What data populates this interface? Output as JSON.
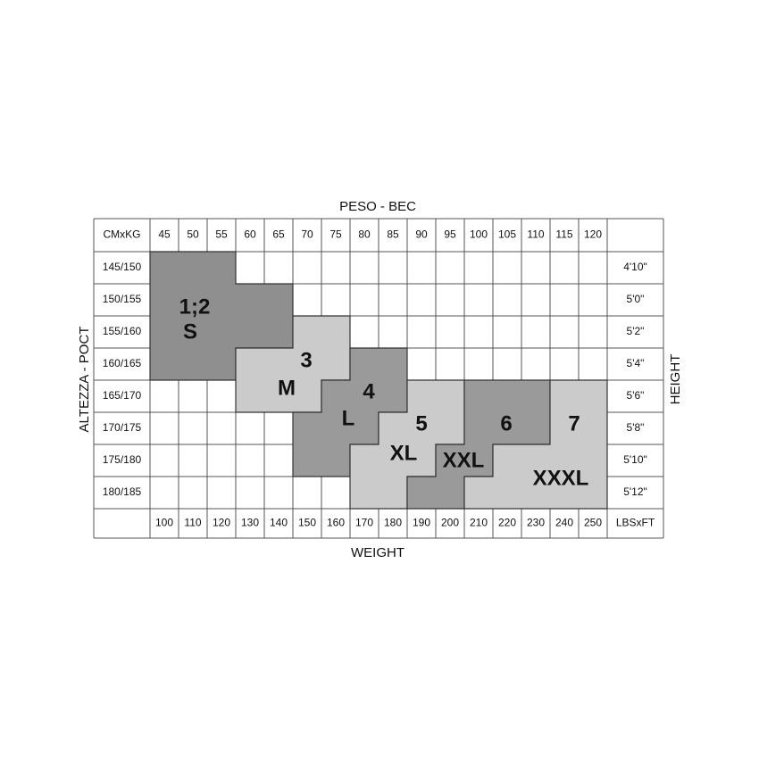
{
  "top_title": "PESO - BEC",
  "bottom_title": "WEIGHT",
  "left_title": "ALTEZZA - POCT",
  "right_title": "HEIGHT",
  "corner_top": "CMxKG",
  "corner_bottom": "LBSxFT",
  "kg": [
    45,
    50,
    55,
    60,
    65,
    70,
    75,
    80,
    85,
    90,
    95,
    100,
    105,
    110,
    115,
    120
  ],
  "lbs": [
    100,
    110,
    120,
    130,
    140,
    150,
    160,
    170,
    180,
    190,
    200,
    210,
    220,
    230,
    240,
    250
  ],
  "cm": [
    "145/150",
    "150/155",
    "155/160",
    "160/165",
    "165/170",
    "170/175",
    "175/180",
    "180/185"
  ],
  "ft": [
    "4'10\"",
    "5'0\"",
    "5'2\"",
    "5'4\"",
    "5'6\"",
    "5'8\"",
    "5'10\"",
    "5'12\""
  ],
  "sizes": [
    {
      "number": "1;2",
      "letter": "S"
    },
    {
      "number": "3",
      "letter": "M"
    },
    {
      "number": "4",
      "letter": "L"
    },
    {
      "number": "5",
      "letter": "XL"
    },
    {
      "number": "6",
      "letter": "XXL"
    },
    {
      "number": "7",
      "letter": "XXXL"
    }
  ]
}
